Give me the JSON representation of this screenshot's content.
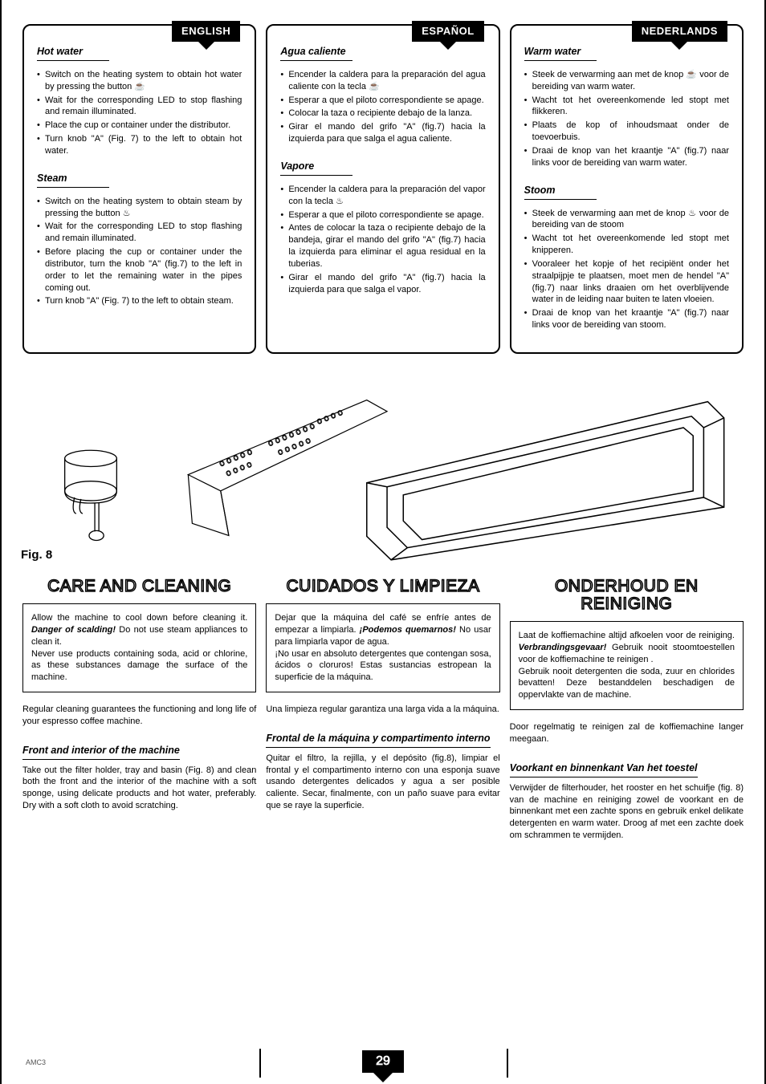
{
  "langs": {
    "en": "ENGLISH",
    "es": "ESPAÑOL",
    "nl": "NEDERLANDS"
  },
  "top": {
    "en": {
      "s1_title": "Hot water",
      "s1_items": [
        "Switch on the heating system to obtain hot water by pressing the button ☕",
        "Wait for the corresponding LED to stop flashing and remain illuminated.",
        "Place the cup or container under the distributor.",
        "Turn knob \"A\" (Fig. 7) to the left to obtain hot water."
      ],
      "s2_title": "Steam",
      "s2_items": [
        "Switch on the heating system to obtain steam by pressing the button ♨",
        "Wait for the corresponding LED to stop flashing and remain illuminated.",
        "Before placing the cup or container under the distributor, turn the knob \"A\" (fig.7) to the left in order to let the remaining water in the pipes coming out.",
        "Turn knob \"A\" (Fig. 7) to the left to obtain steam."
      ]
    },
    "es": {
      "s1_title": "Agua caliente",
      "s1_items": [
        "Encender la caldera para la preparación del agua caliente con la tecla ☕",
        "Esperar a que el piloto correspondiente se apage.",
        "Colocar la taza o recipiente debajo de la lanza.",
        "Girar el mando del grifo \"A\" (fig.7) hacia la izquierda para que salga el agua caliente."
      ],
      "s2_title": "Vapore",
      "s2_items": [
        "Encender la caldera para la preparación del vapor con la tecla ♨",
        "Esperar a que el piloto correspondiente se apage.",
        "Antes de colocar la taza o recipiente debajo de la bandeja, girar el mando del grifo \"A\" (fig.7) hacia la izquierda para eliminar el agua residual en la tuberias.",
        "Girar el mando del grifo \"A\" (fig.7) hacia la izquierda para que salga el vapor."
      ]
    },
    "nl": {
      "s1_title": "Warm water",
      "s1_items": [
        "Steek de verwarming aan met de knop ☕ voor de bereiding van warm water.",
        "Wacht tot het overeenkomende led stopt met flikkeren.",
        "Plaats de kop of inhoudsmaat onder de toevoerbuis.",
        "Draai de knop van het kraantje \"A\" (fig.7) naar links voor de bereiding van warm water."
      ],
      "s2_title": "Stoom",
      "s2_items": [
        "Steek de verwarming aan met de knop ♨ voor de bereiding van de stoom",
        "Wacht tot het overeenkomende led stopt met knipperen.",
        "Vooraleer het kopje of het recipiënt onder het straalpijpje te plaatsen, moet men de hendel \"A\" (fig.7) naar links draaien om het overblijvende water in de leiding naar buiten te laten vloeien.",
        "Draai de knop van het kraantje \"A\" (fig.7) naar links voor de bereiding van stoom."
      ]
    }
  },
  "fig_label": "Fig. 8",
  "sections": {
    "en": {
      "title": "CARE AND CLEANING",
      "callout": "Allow the machine to cool down before cleaning it. <b><i>Danger of scalding!</i></b> Do not use steam appliances to clean it.\nNever use products containing soda, acid or chlorine, as these substances damage the surface of the machine.",
      "para": "Regular cleaning guarantees the functioning and long life of your espresso coffee machine.",
      "sub": "Front and interior of the machine",
      "body": "Take out the filter holder, tray and basin (Fig. 8) and clean both the front and the interior of the machine with a soft sponge, using delicate products and hot water, preferably.\nDry with a soft cloth to avoid scratching."
    },
    "es": {
      "title": "CUIDADOS Y LIMPIEZA",
      "callout": "Dejar que la máquina del café se enfríe antes de empezar a limpiarla. <b><i>¡Podemos quemarnos!</i></b> No usar para limpiarla vapor de agua.\n¡No usar en absoluto detergentes que contengan sosa, ácidos o cloruros! Estas sustancias estropean la superficie de la máquina.",
      "para": "Una limpieza regular garantiza una larga vida a la máquina.",
      "sub": "Frontal de la máquina y compartimento interno",
      "body": "Quitar el filtro, la rejilla, y el depósito (fig.8), limpiar el frontal y el compartimento interno con una esponja suave usando detergentes delicados y agua a ser posible caliente.\nSecar, finalmente, con un paño suave para evitar que se raye la superficie."
    },
    "nl": {
      "title": "ONDERHOUD EN REINIGING",
      "callout": "Laat de koffiemachine altijd afkoelen voor de reiniging. <b><i>Verbrandingsgevaar!</i></b> Gebruik nooit stoomtoestellen voor de koffiemachine te reinigen .\nGebruik nooit detergenten die soda, zuur en chlorides bevatten! Deze bestanddelen beschadigen de oppervlakte van de machine.",
      "para": "Door regelmatig te reinigen zal de koffiemachine langer meegaan.",
      "sub": "Voorkant en binnenkant Van het toestel",
      "body": "Verwijder de filterhouder, het rooster en het schuifje (fig. 8) van de machine en reiniging zowel de voorkant en de binnenkant met een zachte spons en gebruik enkel delikate detergenten en warm water.\nDroog af met een zachte doek om schrammen te vermijden."
    }
  },
  "footer_code": "AMC3",
  "page_number": "29",
  "colors": {
    "text": "#000000",
    "bg": "#ffffff",
    "outline_title": "#000000"
  }
}
